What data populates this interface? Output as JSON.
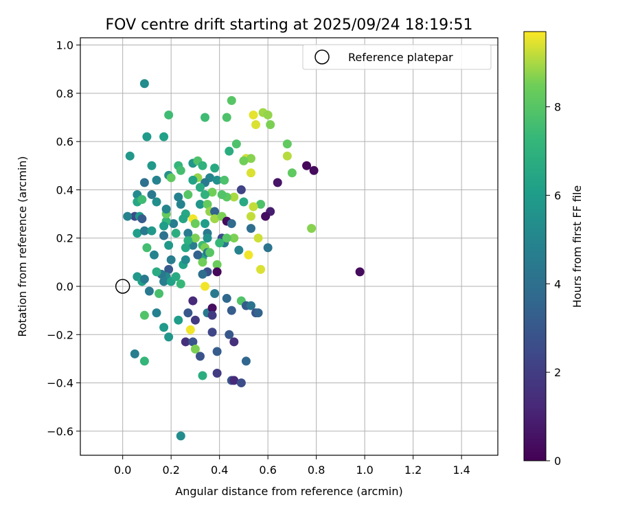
{
  "chart_data": {
    "type": "scatter",
    "title": "FOV centre drift starting at 2025/09/24 18:19:51",
    "xlabel": "Angular distance from reference (arcmin)",
    "ylabel": "Rotation from reference (arcmin)",
    "xlim": [
      -0.175,
      1.55
    ],
    "ylim": [
      -0.7,
      1.03
    ],
    "xticks": [
      0.0,
      0.2,
      0.4,
      0.6,
      0.8,
      1.0,
      1.2,
      1.4
    ],
    "xtick_labels": [
      "0.0",
      "0.2",
      "0.4",
      "0.6",
      "0.8",
      "1.0",
      "1.2",
      "1.4"
    ],
    "yticks": [
      -0.6,
      -0.4,
      -0.2,
      0.0,
      0.2,
      0.4,
      0.6,
      0.8,
      1.0
    ],
    "ytick_labels": [
      "−0.6",
      "−0.4",
      "−0.2",
      "0.0",
      "0.2",
      "0.4",
      "0.6",
      "0.8",
      "1.0"
    ],
    "grid": true,
    "legend": {
      "position": "top-right",
      "entries": [
        "Reference platepar"
      ]
    },
    "reference_point": {
      "x": 0.0,
      "y": 0.0,
      "label": "Reference platepar"
    },
    "colorbar": {
      "label": "Hours from first FF file",
      "min": 0,
      "max": 9.7,
      "ticks": [
        0,
        2,
        4,
        6,
        8
      ],
      "tick_labels": [
        "0",
        "2",
        "4",
        "6",
        "8"
      ],
      "colormap": "viridis"
    },
    "points": [
      [
        0.09,
        0.84,
        5.3
      ],
      [
        0.19,
        0.71,
        7.5
      ],
      [
        0.34,
        0.7,
        7.5
      ],
      [
        0.1,
        0.62,
        5.9
      ],
      [
        0.17,
        0.62,
        6.2
      ],
      [
        0.03,
        0.54,
        5.8
      ],
      [
        0.12,
        0.5,
        5.8
      ],
      [
        0.29,
        0.51,
        5.7
      ],
      [
        0.31,
        0.52,
        7.8
      ],
      [
        0.23,
        0.5,
        7.2
      ],
      [
        0.24,
        0.48,
        7.6
      ],
      [
        0.19,
        0.46,
        5.4
      ],
      [
        0.2,
        0.45,
        8.2
      ],
      [
        0.36,
        0.45,
        5.0
      ],
      [
        0.38,
        0.49,
        6.6
      ],
      [
        0.33,
        0.5,
        7.0
      ],
      [
        0.34,
        0.43,
        4.5
      ],
      [
        0.39,
        0.44,
        5.5
      ],
      [
        0.42,
        0.44,
        7.8
      ],
      [
        0.43,
        0.7,
        7.8
      ],
      [
        0.45,
        0.77,
        8.0
      ],
      [
        0.44,
        0.56,
        6.8
      ],
      [
        0.47,
        0.59,
        7.8
      ],
      [
        0.51,
        0.53,
        9.3
      ],
      [
        0.53,
        0.53,
        8.7
      ],
      [
        0.5,
        0.52,
        8.5
      ],
      [
        0.53,
        0.47,
        9.4
      ],
      [
        0.54,
        0.71,
        9.5
      ],
      [
        0.55,
        0.67,
        9.4
      ],
      [
        0.58,
        0.72,
        8.9
      ],
      [
        0.6,
        0.71,
        8.8
      ],
      [
        0.61,
        0.67,
        8.6
      ],
      [
        0.68,
        0.59,
        8.2
      ],
      [
        0.68,
        0.54,
        9.1
      ],
      [
        0.7,
        0.47,
        8.2
      ],
      [
        0.76,
        0.5,
        0.2
      ],
      [
        0.79,
        0.48,
        0.3
      ],
      [
        0.64,
        0.43,
        0.6
      ],
      [
        0.61,
        0.31,
        0.9
      ],
      [
        0.59,
        0.29,
        0.4
      ],
      [
        0.49,
        0.4,
        2.2
      ],
      [
        0.57,
        0.34,
        7.8
      ],
      [
        0.54,
        0.33,
        9.2
      ],
      [
        0.53,
        0.29,
        9.2
      ],
      [
        0.5,
        0.35,
        6.6
      ],
      [
        0.46,
        0.37,
        9.0
      ],
      [
        0.43,
        0.37,
        8.1
      ],
      [
        0.41,
        0.38,
        7.9
      ],
      [
        0.37,
        0.39,
        8.5
      ],
      [
        0.34,
        0.38,
        7.0
      ],
      [
        0.32,
        0.41,
        6.7
      ],
      [
        0.31,
        0.45,
        8.8
      ],
      [
        0.29,
        0.44,
        6.3
      ],
      [
        0.27,
        0.38,
        8.0
      ],
      [
        0.23,
        0.37,
        4.8
      ],
      [
        0.24,
        0.34,
        4.9
      ],
      [
        0.26,
        0.3,
        6.5
      ],
      [
        0.25,
        0.28,
        6.4
      ],
      [
        0.29,
        0.28,
        9.6
      ],
      [
        0.3,
        0.26,
        8.4
      ],
      [
        0.32,
        0.34,
        5.7
      ],
      [
        0.35,
        0.34,
        8.3
      ],
      [
        0.36,
        0.31,
        8.8
      ],
      [
        0.38,
        0.31,
        3.5
      ],
      [
        0.38,
        0.28,
        8.9
      ],
      [
        0.41,
        0.29,
        8.6
      ],
      [
        0.43,
        0.27,
        0.3
      ],
      [
        0.45,
        0.26,
        3.8
      ],
      [
        0.46,
        0.2,
        8.6
      ],
      [
        0.48,
        0.15,
        4.9
      ],
      [
        0.52,
        0.13,
        9.6
      ],
      [
        0.53,
        0.24,
        3.9
      ],
      [
        0.56,
        0.2,
        9.3
      ],
      [
        0.6,
        0.16,
        4.2
      ],
      [
        0.57,
        0.07,
        9.4
      ],
      [
        0.78,
        0.24,
        8.7
      ],
      [
        0.98,
        0.06,
        0.3
      ],
      [
        0.34,
        0.26,
        6.0
      ],
      [
        0.35,
        0.22,
        4.5
      ],
      [
        0.35,
        0.2,
        5.5
      ],
      [
        0.33,
        0.17,
        7.5
      ],
      [
        0.33,
        0.12,
        6.4
      ],
      [
        0.33,
        0.1,
        8.5
      ],
      [
        0.34,
        0.16,
        8.6
      ],
      [
        0.35,
        0.14,
        4.4
      ],
      [
        0.35,
        0.06,
        2.7
      ],
      [
        0.33,
        0.05,
        3.9
      ],
      [
        0.31,
        0.13,
        3.5
      ],
      [
        0.29,
        0.17,
        4.6
      ],
      [
        0.3,
        0.2,
        8.6
      ],
      [
        0.27,
        0.22,
        4.6
      ],
      [
        0.26,
        0.16,
        6.5
      ],
      [
        0.27,
        0.19,
        6.9
      ],
      [
        0.25,
        0.09,
        6.2
      ],
      [
        0.26,
        0.11,
        5.2
      ],
      [
        0.22,
        0.22,
        6.8
      ],
      [
        0.21,
        0.26,
        4.6
      ],
      [
        0.18,
        0.27,
        7.2
      ],
      [
        0.17,
        0.25,
        6.0
      ],
      [
        0.18,
        0.3,
        8.3
      ],
      [
        0.18,
        0.32,
        5.0
      ],
      [
        0.14,
        0.35,
        5.4
      ],
      [
        0.12,
        0.38,
        4.5
      ],
      [
        0.14,
        0.44,
        4.9
      ],
      [
        0.09,
        0.43,
        4.0
      ],
      [
        0.06,
        0.38,
        5.2
      ],
      [
        0.06,
        0.35,
        6.5
      ],
      [
        0.08,
        0.36,
        7.5
      ],
      [
        0.05,
        0.29,
        2.5
      ],
      [
        0.07,
        0.29,
        5.9
      ],
      [
        0.08,
        0.28,
        3.2
      ],
      [
        0.02,
        0.29,
        4.9
      ],
      [
        0.06,
        0.22,
        6.1
      ],
      [
        0.09,
        0.23,
        4.5
      ],
      [
        0.12,
        0.23,
        5.8
      ],
      [
        0.1,
        0.16,
        7.6
      ],
      [
        0.13,
        0.13,
        4.9
      ],
      [
        0.17,
        0.21,
        4.1
      ],
      [
        0.19,
        0.17,
        5.8
      ],
      [
        0.2,
        0.11,
        4.6
      ],
      [
        0.19,
        0.07,
        3.1
      ],
      [
        0.18,
        0.04,
        5.1
      ],
      [
        0.16,
        0.05,
        4.4
      ],
      [
        0.14,
        0.06,
        6.7
      ],
      [
        0.17,
        0.02,
        4.6
      ],
      [
        0.2,
        0.02,
        6.2
      ],
      [
        0.22,
        0.04,
        6.6
      ],
      [
        0.24,
        0.01,
        7.3
      ],
      [
        0.06,
        0.04,
        5.8
      ],
      [
        0.08,
        0.02,
        6.2
      ],
      [
        0.09,
        0.03,
        4.5
      ],
      [
        0.11,
        -0.02,
        4.5
      ],
      [
        0.15,
        -0.03,
        7.7
      ],
      [
        0.14,
        -0.11,
        4.8
      ],
      [
        0.09,
        -0.12,
        7.9
      ],
      [
        0.17,
        -0.17,
        5.9
      ],
      [
        0.19,
        -0.21,
        5.7
      ],
      [
        0.23,
        -0.14,
        6.0
      ],
      [
        0.26,
        -0.23,
        1.5
      ],
      [
        0.27,
        -0.11,
        3.0
      ],
      [
        0.29,
        -0.06,
        1.3
      ],
      [
        0.3,
        -0.14,
        1.9
      ],
      [
        0.28,
        -0.18,
        9.6
      ],
      [
        0.29,
        -0.23,
        2.9
      ],
      [
        0.3,
        -0.26,
        8.6
      ],
      [
        0.32,
        -0.29,
        2.8
      ],
      [
        0.33,
        -0.37,
        6.8
      ],
      [
        0.35,
        -0.11,
        4.5
      ],
      [
        0.37,
        -0.09,
        0.4
      ],
      [
        0.37,
        -0.12,
        1.9
      ],
      [
        0.38,
        -0.03,
        4.5
      ],
      [
        0.37,
        -0.19,
        2.3
      ],
      [
        0.39,
        -0.27,
        3.2
      ],
      [
        0.39,
        -0.36,
        1.9
      ],
      [
        0.43,
        -0.05,
        3.7
      ],
      [
        0.44,
        -0.2,
        3.0
      ],
      [
        0.45,
        -0.1,
        3.2
      ],
      [
        0.46,
        -0.23,
        1.5
      ],
      [
        0.45,
        -0.39,
        2.9
      ],
      [
        0.46,
        -0.39,
        1.3
      ],
      [
        0.49,
        -0.4,
        2.6
      ],
      [
        0.49,
        -0.06,
        7.9
      ],
      [
        0.51,
        -0.31,
        3.6
      ],
      [
        0.51,
        -0.08,
        3.1
      ],
      [
        0.53,
        -0.08,
        4.2
      ],
      [
        0.55,
        -0.11,
        2.8
      ],
      [
        0.56,
        -0.11,
        3.5
      ],
      [
        0.05,
        -0.28,
        4.6
      ],
      [
        0.09,
        -0.31,
        7.2
      ],
      [
        0.24,
        -0.62,
        5.3
      ],
      [
        0.39,
        0.09,
        8.4
      ],
      [
        0.39,
        0.06,
        0.2
      ],
      [
        0.41,
        0.2,
        2.6
      ],
      [
        0.42,
        0.18,
        4.4
      ],
      [
        0.43,
        0.2,
        8.0
      ],
      [
        0.4,
        0.18,
        7.3
      ],
      [
        0.34,
        0.0,
        9.6
      ],
      [
        0.36,
        0.14,
        8.0
      ]
    ]
  }
}
